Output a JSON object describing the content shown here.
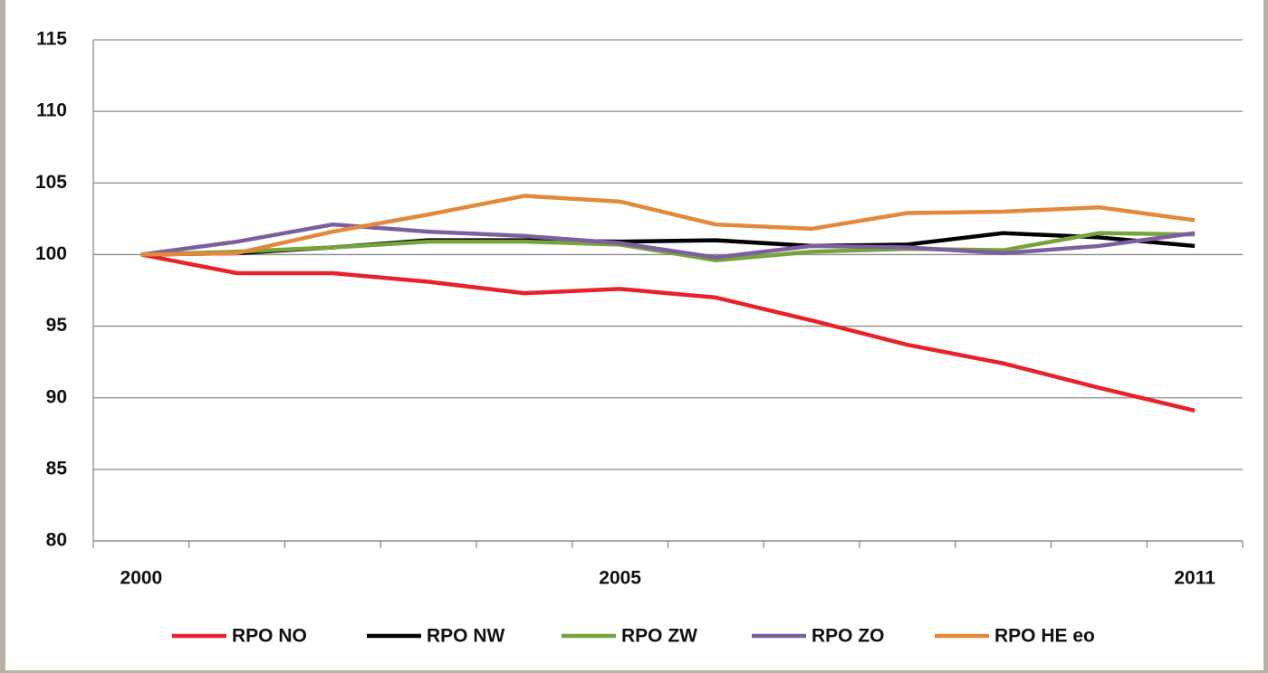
{
  "chart_data": {
    "type": "line",
    "categories": [
      "2000",
      null,
      null,
      null,
      null,
      "2005",
      null,
      null,
      null,
      null,
      null,
      "2011"
    ],
    "series": [
      {
        "name": "RPO NO",
        "color": "#e8212b",
        "values": [
          100,
          98.7,
          98.7,
          98.1,
          97.3,
          97.6,
          97.0,
          95.4,
          93.7,
          92.4,
          90.7,
          89.1
        ]
      },
      {
        "name": "RPO NW",
        "color": "#000000",
        "values": [
          100,
          100.1,
          100.5,
          101.0,
          101.0,
          100.9,
          101.0,
          100.6,
          100.7,
          101.5,
          101.2,
          100.6
        ]
      },
      {
        "name": "RPO ZW",
        "color": "#77a33b",
        "values": [
          100,
          100.2,
          100.5,
          100.9,
          100.9,
          100.7,
          99.6,
          100.2,
          100.4,
          100.3,
          101.5,
          101.4
        ]
      },
      {
        "name": "RPO ZO",
        "color": "#7d5fa0",
        "values": [
          100,
          100.9,
          102.1,
          101.6,
          101.3,
          100.8,
          99.8,
          100.6,
          100.5,
          100.1,
          100.6,
          101.5
        ]
      },
      {
        "name": "RPO HE eo",
        "color": "#e2893b",
        "values": [
          100,
          100.1,
          101.6,
          102.8,
          104.1,
          103.7,
          102.1,
          101.8,
          102.9,
          103.0,
          103.3,
          102.4
        ]
      }
    ],
    "ylim": [
      80,
      115
    ],
    "yticks": [
      80,
      85,
      90,
      95,
      100,
      105,
      110,
      115
    ],
    "grid": true,
    "legend": "bottom"
  }
}
